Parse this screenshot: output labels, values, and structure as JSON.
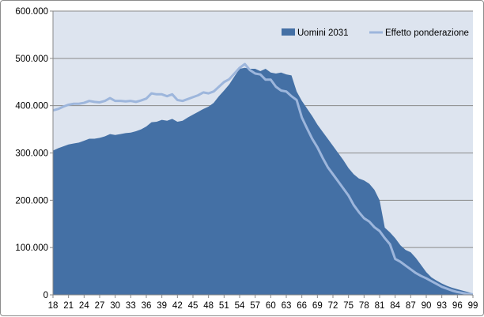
{
  "chart_data": {
    "type": "area",
    "title": "",
    "xlabel": "",
    "ylabel": "",
    "ylim": [
      0,
      600000
    ],
    "y_ticks": [
      0,
      100000,
      200000,
      300000,
      400000,
      500000,
      600000
    ],
    "y_tick_labels": [
      "0",
      "100.000",
      "200.000",
      "300.000",
      "400.000",
      "500.000",
      "600.000"
    ],
    "x_tick_labels": [
      "18",
      "21",
      "24",
      "27",
      "30",
      "33",
      "36",
      "39",
      "42",
      "45",
      "48",
      "51",
      "54",
      "57",
      "60",
      "63",
      "66",
      "69",
      "72",
      "75",
      "78",
      "81",
      "84",
      "87",
      "90",
      "93",
      "96",
      "99"
    ],
    "x": [
      18,
      19,
      20,
      21,
      22,
      23,
      24,
      25,
      26,
      27,
      28,
      29,
      30,
      31,
      32,
      33,
      34,
      35,
      36,
      37,
      38,
      39,
      40,
      41,
      42,
      43,
      44,
      45,
      46,
      47,
      48,
      49,
      50,
      51,
      52,
      53,
      54,
      55,
      56,
      57,
      58,
      59,
      60,
      61,
      62,
      63,
      64,
      65,
      66,
      67,
      68,
      69,
      70,
      71,
      72,
      73,
      74,
      75,
      76,
      77,
      78,
      79,
      80,
      81,
      82,
      83,
      84,
      85,
      86,
      87,
      88,
      89,
      90,
      91,
      92,
      93,
      94,
      95,
      96,
      97,
      98,
      99
    ],
    "grid": "horizontal",
    "legend_position": "top-right",
    "plot_background": "#dde4ef",
    "series": [
      {
        "name": "Uomini 2031",
        "type": "area",
        "color": "#4470a5",
        "values": [
          305000,
          310000,
          314000,
          318000,
          320000,
          322000,
          326000,
          330000,
          330000,
          332000,
          335000,
          340000,
          338000,
          340000,
          342000,
          343000,
          346000,
          350000,
          356000,
          365000,
          366000,
          370000,
          368000,
          372000,
          366000,
          368000,
          375000,
          381000,
          387000,
          393000,
          398000,
          406000,
          420000,
          432000,
          445000,
          462000,
          478000,
          480000,
          478000,
          478000,
          473000,
          478000,
          470000,
          468000,
          470000,
          466000,
          464000,
          430000,
          410000,
          394000,
          378000,
          360000,
          345000,
          330000,
          315000,
          300000,
          285000,
          268000,
          255000,
          246000,
          242000,
          235000,
          222000,
          200000,
          142000,
          132000,
          120000,
          105000,
          95000,
          90000,
          78000,
          63000,
          48000,
          37000,
          30000,
          24000,
          19000,
          15000,
          12000,
          9000,
          6000,
          3000
        ]
      },
      {
        "name": "Effetto ponderazione",
        "type": "line",
        "color": "#9db6dc",
        "values": [
          390000,
          393000,
          398000,
          402000,
          404000,
          404000,
          406000,
          410000,
          408000,
          407000,
          410000,
          416000,
          410000,
          410000,
          409000,
          410000,
          408000,
          411000,
          415000,
          426000,
          424000,
          424000,
          420000,
          424000,
          412000,
          410000,
          414000,
          418000,
          422000,
          428000,
          426000,
          430000,
          440000,
          450000,
          456000,
          468000,
          480000,
          488000,
          475000,
          468000,
          466000,
          455000,
          455000,
          440000,
          432000,
          430000,
          420000,
          412000,
          375000,
          352000,
          330000,
          312000,
          290000,
          270000,
          255000,
          240000,
          225000,
          210000,
          190000,
          175000,
          162000,
          155000,
          143000,
          135000,
          120000,
          107000,
          76000,
          70000,
          62000,
          54000,
          46000,
          40000,
          35000,
          29000,
          23000,
          17000,
          13000,
          9000,
          6000,
          4000,
          2000,
          1000
        ]
      }
    ]
  }
}
